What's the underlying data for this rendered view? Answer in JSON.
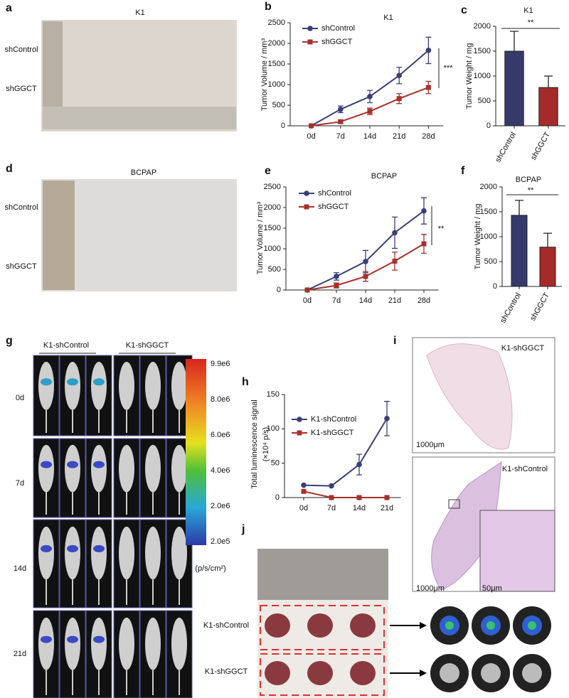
{
  "chart_data": [
    {
      "type": "line",
      "label": "b",
      "title": "K1",
      "ylabel": "Tumor Volume / mm³",
      "categories": [
        "0d",
        "7d",
        "14d",
        "21d",
        "28d"
      ],
      "series": [
        {
          "name": "shControl",
          "color": "#3b3f75",
          "marker": "circle",
          "values": [
            0,
            400,
            710,
            1220,
            1830
          ],
          "errors": [
            0,
            80,
            150,
            200,
            320
          ]
        },
        {
          "name": "shGGCT",
          "color": "#a6312c",
          "marker": "square",
          "values": [
            0,
            100,
            350,
            660,
            930
          ],
          "errors": [
            0,
            40,
            80,
            120,
            150
          ]
        }
      ],
      "ylim": [
        0,
        2500
      ],
      "yticks": [
        0,
        500,
        1000,
        1500,
        2000,
        2500
      ],
      "annotation": "***"
    },
    {
      "type": "bar",
      "label": "c",
      "title": "K1",
      "ylabel": "Tumor Weight / mg",
      "categories": [
        "shControl",
        "shGGCT"
      ],
      "values": [
        1500,
        770
      ],
      "errors": [
        400,
        230
      ],
      "colors": [
        "#363a6b",
        "#a52a2a"
      ],
      "ylim": [
        0,
        2000
      ],
      "yticks": [
        0,
        500,
        1000,
        1500,
        2000
      ],
      "annotation": "**"
    },
    {
      "type": "line",
      "label": "e",
      "title": "BCPAP",
      "ylabel": "Tumor Volume / mm³",
      "categories": [
        "0d",
        "7d",
        "14d",
        "21d",
        "28d"
      ],
      "series": [
        {
          "name": "shControl",
          "color": "#3b3f75",
          "marker": "circle",
          "values": [
            0,
            330,
            690,
            1390,
            1920
          ],
          "errors": [
            0,
            90,
            270,
            380,
            320
          ]
        },
        {
          "name": "shGGCT",
          "color": "#a6312c",
          "marker": "square",
          "values": [
            0,
            110,
            330,
            700,
            1120
          ],
          "errors": [
            0,
            60,
            120,
            220,
            230
          ]
        }
      ],
      "ylim": [
        0,
        2500
      ],
      "yticks": [
        0,
        500,
        1000,
        1500,
        2000,
        2500
      ],
      "annotation": "**"
    },
    {
      "type": "bar",
      "label": "f",
      "title": "BCPAP",
      "ylabel": "Tumor Weight / mg",
      "categories": [
        "shControl",
        "shGGCT"
      ],
      "values": [
        1430,
        790
      ],
      "errors": [
        300,
        280
      ],
      "colors": [
        "#363a6b",
        "#a52a2a"
      ],
      "ylim": [
        0,
        2000
      ],
      "yticks": [
        0,
        500,
        1000,
        1500,
        2000
      ],
      "annotation": "**"
    },
    {
      "type": "line",
      "label": "h",
      "ylabel": [
        "Total luminescence signal",
        "(×10⁴ p/s)"
      ],
      "categories": [
        "0d",
        "7d",
        "14d",
        "21d"
      ],
      "series": [
        {
          "name": "K1-shControl",
          "color": "#3b3f75",
          "marker": "circle",
          "values": [
            18,
            17,
            48,
            115
          ],
          "errors": [
            0,
            0,
            15,
            25
          ]
        },
        {
          "name": "K1-shGGCT",
          "color": "#a6312c",
          "marker": "square",
          "values": [
            9,
            0,
            0,
            0
          ],
          "errors": [
            0,
            0,
            0,
            0
          ]
        }
      ],
      "ylim": [
        0,
        150
      ],
      "yticks": [
        0,
        50,
        100,
        150
      ]
    }
  ],
  "panels": {
    "a": {
      "label": "a",
      "title": "K1",
      "rows": [
        "shControl",
        "shGGCT"
      ]
    },
    "d": {
      "label": "d",
      "title": "BCPAP",
      "rows": [
        "shControl",
        "shGGCT"
      ]
    },
    "g": {
      "label": "g",
      "groups": [
        "K1-shControl",
        "K1-shGGCT"
      ],
      "days": [
        "0d",
        "7d",
        "14d",
        "21d"
      ],
      "colorbar": {
        "ticks": [
          "9.9e6",
          "8.0e6",
          "6.0e6",
          "4.0e6",
          "2.0e6",
          "2.0e5"
        ],
        "unit": "(p/s/cm²)"
      }
    },
    "i": {
      "label": "i",
      "panels": [
        "K1-shGGCT",
        "K1-shControl"
      ],
      "scale_bars": [
        "1000μm",
        "1000μm",
        "50μm"
      ]
    },
    "j": {
      "label": "j",
      "rows": [
        "K1-shControl",
        "K1-shGGCT"
      ]
    }
  }
}
